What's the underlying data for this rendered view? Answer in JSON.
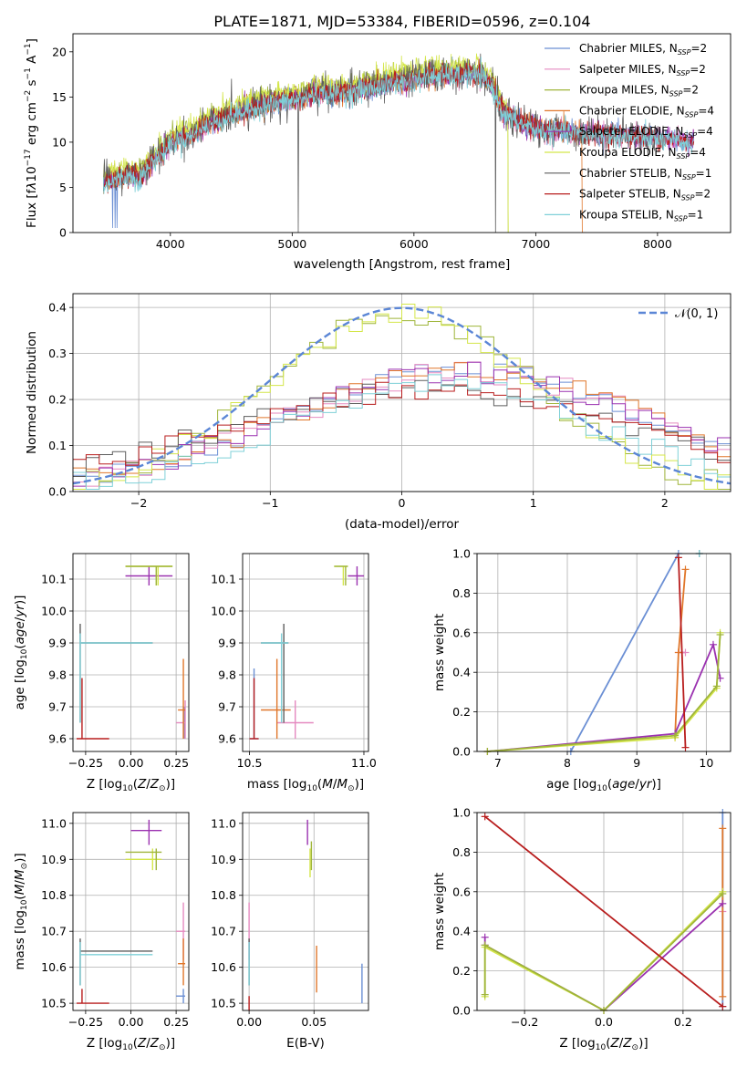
{
  "figure_title": "PLATE=1871, MJD=53384, FIBERID=0596, z=0.104",
  "models": [
    {
      "name": "Chabrier MILES, N_SSP=2",
      "color": "#6b8fd4"
    },
    {
      "name": "Salpeter MILES, N_SSP=2",
      "color": "#e58ac0"
    },
    {
      "name": "Kroupa MILES, N_SSP=2",
      "color": "#9fb53a"
    },
    {
      "name": "Chabrier ELODIE, N_SSP=4",
      "color": "#e0762a"
    },
    {
      "name": "Salpeter ELODIE, N_SSP=4",
      "color": "#9b32b0"
    },
    {
      "name": "Kroupa ELODIE, N_SSP=4",
      "color": "#d4e64a"
    },
    {
      "name": "Chabrier STELIB, N_SSP=1",
      "color": "#5e5e5e"
    },
    {
      "name": "Salpeter STELIB, N_SSP=2",
      "color": "#b81d1d"
    },
    {
      "name": "Kroupa STELIB, N_SSP=1",
      "color": "#7fd0d8"
    }
  ],
  "chart_data": [
    {
      "id": "spectrum",
      "type": "line",
      "xlabel": "wavelength [Angstrom, rest frame]",
      "ylabel": "Flux [f_λ 10^-17 erg cm^-2 s^-1 A^-1]",
      "xlim": [
        3200,
        8600
      ],
      "ylim": [
        0,
        22
      ],
      "xticks": [
        4000,
        5000,
        6000,
        7000,
        8000
      ],
      "yticks": [
        0,
        5,
        10,
        15,
        20
      ],
      "grid": false,
      "legend": "top-right",
      "continuum": {
        "x": [
          3450,
          3550,
          3650,
          3750,
          3850,
          3950,
          4000,
          4100,
          4200,
          4300,
          4400,
          4500,
          4700,
          4900,
          5100,
          5200,
          5400,
          5600,
          5800,
          6000,
          6200,
          6400,
          6550,
          6650,
          6750,
          7000,
          7500,
          8000,
          8300
        ],
        "y": [
          5.5,
          6,
          6.5,
          6,
          8,
          9,
          10,
          10.5,
          11,
          12,
          12.5,
          13,
          14,
          14.5,
          15,
          15.5,
          15.5,
          16,
          16.5,
          17,
          17.5,
          17.5,
          17.5,
          16,
          13,
          11.5,
          11,
          10.5,
          10
        ]
      }
    },
    {
      "id": "residuals",
      "type": "histogram",
      "xlabel": "(data-model)/error",
      "ylabel": "Normed distribution",
      "xlim": [
        -2.5,
        2.5
      ],
      "ylim": [
        0,
        0.43
      ],
      "xticks": [
        -2,
        -1,
        0,
        1,
        2
      ],
      "yticks": [
        0.0,
        0.1,
        0.2,
        0.3,
        0.4
      ],
      "grid": true,
      "legend": "top-right",
      "gaussian_label": "𝒩(0, 1)",
      "gaussian_color": "#5b86d6"
    },
    {
      "id": "age_vs_Z",
      "type": "errorbar",
      "xlabel": "Z [log10(Z/Z⊙)]",
      "ylabel": "age [log10(age/yr)]",
      "xlim": [
        -0.32,
        0.32
      ],
      "ylim": [
        9.56,
        10.18
      ],
      "xticks": [
        -0.25,
        0.0,
        0.25
      ],
      "xticklabels": [
        "−0.25",
        "0.00",
        "0.25"
      ],
      "yticks": [
        9.6,
        9.7,
        9.8,
        9.9,
        10.0,
        10.1
      ],
      "points": [
        {
          "model": 0,
          "x": 0.295,
          "y": 9.65,
          "xlo": 0.295,
          "xhi": 0.295,
          "ylo": 9.6,
          "yhi": 9.7
        },
        {
          "model": 1,
          "x": 0.3,
          "y": 9.65,
          "xlo": 0.25,
          "xhi": 0.3,
          "ylo": 9.6,
          "yhi": 9.72
        },
        {
          "model": 3,
          "x": 0.29,
          "y": 9.69,
          "xlo": 0.26,
          "xhi": 0.3,
          "ylo": 9.6,
          "yhi": 9.85
        },
        {
          "model": 4,
          "x": 0.1,
          "y": 10.11,
          "xlo": -0.03,
          "xhi": 0.23,
          "ylo": 10.08,
          "yhi": 10.14
        },
        {
          "model": 5,
          "x": 0.15,
          "y": 10.14,
          "xlo": -0.03,
          "xhi": 0.23,
          "ylo": 10.08,
          "yhi": 10.14
        },
        {
          "model": 2,
          "x": 0.14,
          "y": 10.14,
          "xlo": -0.03,
          "xhi": 0.23,
          "ylo": 10.08,
          "yhi": 10.14
        },
        {
          "model": 6,
          "x": -0.28,
          "y": 9.9,
          "xlo": -0.28,
          "xhi": 0.12,
          "ylo": 9.65,
          "yhi": 9.96
        },
        {
          "model": 8,
          "x": -0.28,
          "y": 9.9,
          "xlo": -0.28,
          "xhi": 0.12,
          "ylo": 9.65,
          "yhi": 9.93
        },
        {
          "model": 7,
          "x": -0.27,
          "y": 9.6,
          "xlo": -0.3,
          "xhi": -0.12,
          "ylo": 9.6,
          "yhi": 9.79
        }
      ]
    },
    {
      "id": "age_vs_mass",
      "type": "errorbar",
      "xlabel": "mass [log10(M/M⊙)]",
      "ylabel": "",
      "xlim": [
        10.47,
        11.02
      ],
      "ylim": [
        9.56,
        10.18
      ],
      "xticks": [
        10.5,
        11.0
      ],
      "xticklabels": [
        "10.5",
        "11.0"
      ],
      "yticks": [
        9.6,
        9.7,
        9.8,
        9.9,
        10.0,
        10.1
      ],
      "points": [
        {
          "model": 0,
          "x": 10.52,
          "y": 9.6,
          "xlo": 10.5,
          "xhi": 10.54,
          "ylo": 9.6,
          "yhi": 9.82
        },
        {
          "model": 1,
          "x": 10.7,
          "y": 9.65,
          "xlo": 10.62,
          "xhi": 10.78,
          "ylo": 9.6,
          "yhi": 9.72
        },
        {
          "model": 3,
          "x": 10.62,
          "y": 9.69,
          "xlo": 10.55,
          "xhi": 10.68,
          "ylo": 9.6,
          "yhi": 9.85
        },
        {
          "model": 4,
          "x": 10.97,
          "y": 10.11,
          "xlo": 10.93,
          "xhi": 11.0,
          "ylo": 10.08,
          "yhi": 10.14
        },
        {
          "model": 5,
          "x": 10.91,
          "y": 10.14,
          "xlo": 10.87,
          "xhi": 10.93,
          "ylo": 10.08,
          "yhi": 10.14
        },
        {
          "model": 2,
          "x": 10.92,
          "y": 10.14,
          "xlo": 10.87,
          "xhi": 10.93,
          "ylo": 10.08,
          "yhi": 10.14
        },
        {
          "model": 6,
          "x": 10.65,
          "y": 9.9,
          "xlo": 10.55,
          "xhi": 10.67,
          "ylo": 9.65,
          "yhi": 9.96
        },
        {
          "model": 8,
          "x": 10.64,
          "y": 9.9,
          "xlo": 10.55,
          "xhi": 10.67,
          "ylo": 9.65,
          "yhi": 9.93
        },
        {
          "model": 7,
          "x": 10.52,
          "y": 9.6,
          "xlo": 10.5,
          "xhi": 10.54,
          "ylo": 9.6,
          "yhi": 9.79
        }
      ]
    },
    {
      "id": "weight_vs_age",
      "type": "line",
      "xlabel": "age [log10(age/yr)]",
      "ylabel": "mass weight",
      "xlim": [
        6.7,
        10.35
      ],
      "ylim": [
        0,
        1
      ],
      "xticks": [
        7,
        8,
        9,
        10
      ],
      "yticks": [
        0.0,
        0.2,
        0.4,
        0.6,
        0.8,
        1.0
      ],
      "grid": true,
      "series": [
        {
          "model": 0,
          "x": [
            8.05,
            9.6
          ],
          "y": [
            0.0,
            1.0
          ]
        },
        {
          "model": 1,
          "x": [
            9.6,
            9.7
          ],
          "y": [
            0.5,
            0.5
          ]
        },
        {
          "model": 3,
          "x": [
            9.55,
            9.6,
            9.7
          ],
          "y": [
            0.07,
            0.5,
            0.92
          ]
        },
        {
          "model": 4,
          "x": [
            6.85,
            9.55,
            10.1,
            10.2
          ],
          "y": [
            0.0,
            0.09,
            0.54,
            0.37
          ]
        },
        {
          "model": 5,
          "x": [
            6.85,
            9.55,
            10.15,
            10.2
          ],
          "y": [
            0.0,
            0.07,
            0.32,
            0.6
          ]
        },
        {
          "model": 2,
          "x": [
            6.85,
            9.55,
            10.15,
            10.2
          ],
          "y": [
            0.0,
            0.08,
            0.33,
            0.59
          ]
        },
        {
          "model": 6,
          "x": [
            9.9
          ],
          "y": [
            1.0
          ]
        },
        {
          "model": 7,
          "x": [
            9.6,
            9.7
          ],
          "y": [
            0.98,
            0.02
          ]
        },
        {
          "model": 8,
          "x": [
            9.9
          ],
          "y": [
            1.0
          ]
        }
      ]
    },
    {
      "id": "mass_vs_Z",
      "type": "errorbar",
      "xlabel": "Z [log10(Z/Z⊙)]",
      "ylabel": "mass [log10(M/M⊙)]",
      "xlim": [
        -0.32,
        0.32
      ],
      "ylim": [
        10.48,
        11.03
      ],
      "xticks": [
        -0.25,
        0.0,
        0.25
      ],
      "xticklabels": [
        "−0.25",
        "0.00",
        "0.25"
      ],
      "yticks": [
        10.5,
        10.6,
        10.7,
        10.8,
        10.9,
        11.0
      ],
      "points": [
        {
          "model": 0,
          "x": 0.29,
          "y": 10.52,
          "xlo": 0.25,
          "xhi": 0.3,
          "ylo": 10.5,
          "yhi": 10.54
        },
        {
          "model": 1,
          "x": 0.29,
          "y": 10.7,
          "xlo": 0.25,
          "xhi": 0.3,
          "ylo": 10.62,
          "yhi": 10.78
        },
        {
          "model": 3,
          "x": 0.29,
          "y": 10.61,
          "xlo": 0.26,
          "xhi": 0.3,
          "ylo": 10.55,
          "yhi": 10.68
        },
        {
          "model": 4,
          "x": 0.1,
          "y": 10.98,
          "xlo": 0.0,
          "xhi": 0.17,
          "ylo": 10.94,
          "yhi": 11.01
        },
        {
          "model": 5,
          "x": 0.12,
          "y": 10.9,
          "xlo": -0.03,
          "xhi": 0.17,
          "ylo": 10.87,
          "yhi": 10.93
        },
        {
          "model": 2,
          "x": 0.14,
          "y": 10.92,
          "xlo": -0.03,
          "xhi": 0.17,
          "ylo": 10.87,
          "yhi": 10.93
        },
        {
          "model": 6,
          "x": -0.28,
          "y": 10.645,
          "xlo": -0.28,
          "xhi": 0.12,
          "ylo": 10.55,
          "yhi": 10.68
        },
        {
          "model": 8,
          "x": -0.28,
          "y": 10.635,
          "xlo": -0.28,
          "xhi": 0.12,
          "ylo": 10.55,
          "yhi": 10.67
        },
        {
          "model": 7,
          "x": -0.27,
          "y": 10.5,
          "xlo": -0.3,
          "xhi": -0.12,
          "ylo": 10.5,
          "yhi": 10.54
        }
      ]
    },
    {
      "id": "mass_vs_ebv",
      "type": "errorbar",
      "xlabel": "E(B-V)",
      "ylabel": "",
      "xlim": [
        -0.005,
        0.092
      ],
      "ylim": [
        10.48,
        11.03
      ],
      "xticks": [
        0.0,
        0.05
      ],
      "xticklabels": [
        "0.00",
        "0.05"
      ],
      "yticks": [
        10.5,
        10.6,
        10.7,
        10.8,
        10.9,
        11.0
      ],
      "points": [
        {
          "model": 0,
          "x": 0.087,
          "y": 10.52,
          "xlo": 0.087,
          "xhi": 0.087,
          "ylo": 10.5,
          "yhi": 10.61
        },
        {
          "model": 1,
          "x": 0.0,
          "y": 10.7,
          "xlo": 0.0,
          "xhi": 0.0,
          "ylo": 10.62,
          "yhi": 10.78
        },
        {
          "model": 3,
          "x": 0.052,
          "y": 10.61,
          "xlo": 0.052,
          "xhi": 0.052,
          "ylo": 10.53,
          "yhi": 10.66
        },
        {
          "model": 4,
          "x": 0.045,
          "y": 10.98,
          "xlo": 0.045,
          "xhi": 0.045,
          "ylo": 10.94,
          "yhi": 11.01
        },
        {
          "model": 5,
          "x": 0.047,
          "y": 10.9,
          "xlo": 0.047,
          "xhi": 0.047,
          "ylo": 10.85,
          "yhi": 10.93
        },
        {
          "model": 2,
          "x": 0.048,
          "y": 10.92,
          "xlo": 0.048,
          "xhi": 0.048,
          "ylo": 10.87,
          "yhi": 10.95
        },
        {
          "model": 6,
          "x": 0.0,
          "y": 10.645,
          "xlo": 0.0,
          "xhi": 0.0,
          "ylo": 10.55,
          "yhi": 10.68
        },
        {
          "model": 8,
          "x": 0.0,
          "y": 10.635,
          "xlo": 0.0,
          "xhi": 0.0,
          "ylo": 10.55,
          "yhi": 10.67
        },
        {
          "model": 7,
          "x": 0.0,
          "y": 10.5,
          "xlo": 0.0,
          "xhi": 0.0,
          "ylo": 10.48,
          "yhi": 10.52
        }
      ]
    },
    {
      "id": "weight_vs_Z",
      "type": "line",
      "xlabel": "Z [log10(Z/Z⊙)]",
      "ylabel": "mass weight",
      "xlim": [
        -0.32,
        0.32
      ],
      "ylim": [
        0,
        1
      ],
      "xticks": [
        -0.2,
        0.0,
        0.2
      ],
      "xticklabels": [
        "−0.2",
        "0.0",
        "0.2"
      ],
      "yticks": [
        0.0,
        0.2,
        0.4,
        0.6,
        0.8,
        1.0
      ],
      "grid": true,
      "series": [
        {
          "model": 0,
          "x": [
            0.3,
            0.3
          ],
          "y": [
            0.02,
            1.0
          ]
        },
        {
          "model": 1,
          "x": [
            0.3
          ],
          "y": [
            0.5
          ]
        },
        {
          "model": 3,
          "x": [
            0.3,
            0.3
          ],
          "y": [
            0.07,
            0.92
          ]
        },
        {
          "model": 4,
          "x": [
            -0.3,
            -0.3,
            0.0,
            0.3
          ],
          "y": [
            0.37,
            0.33,
            0.0,
            0.54
          ]
        },
        {
          "model": 5,
          "x": [
            -0.3,
            -0.3,
            0.0,
            0.3
          ],
          "y": [
            0.07,
            0.32,
            0.0,
            0.6
          ]
        },
        {
          "model": 2,
          "x": [
            -0.3,
            -0.3,
            0.0,
            0.3
          ],
          "y": [
            0.08,
            0.33,
            0.0,
            0.59
          ]
        },
        {
          "model": 7,
          "x": [
            -0.3,
            0.3
          ],
          "y": [
            0.98,
            0.02
          ]
        }
      ]
    }
  ]
}
